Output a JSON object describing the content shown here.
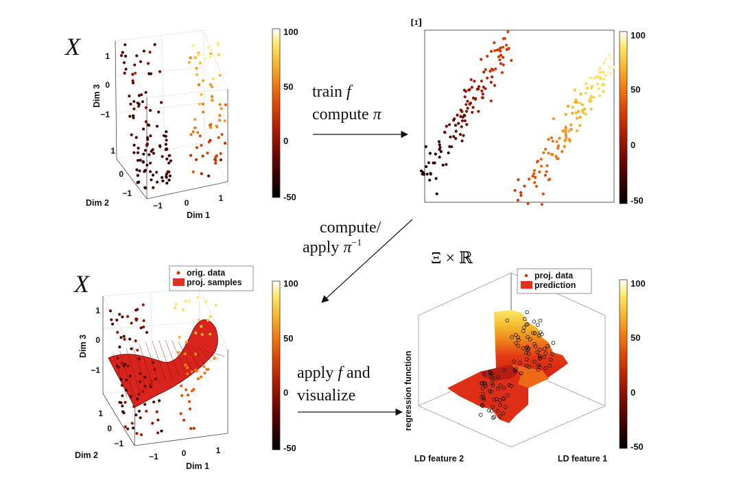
{
  "colors": {
    "colormap": [
      "#000000",
      "#3a0000",
      "#7a0a00",
      "#b52000",
      "#e04400",
      "#f27a10",
      "#f9b52a",
      "#fde865",
      "#ffffff"
    ],
    "surface": "#d8241c",
    "legend_orig": "#c83a0c",
    "legend_proj": "#e03020",
    "legend_pred": "#e2321c"
  },
  "panel_tl": {
    "title": "X",
    "xlabel": "Dim 1",
    "ylabel": "Dim 2",
    "zlabel": "Dim 3",
    "z_ticks": [
      "1",
      "0",
      "−1"
    ],
    "y_ticks": [
      "1",
      "0",
      "−1"
    ],
    "x_ticks": [
      "−1",
      "0",
      "1"
    ],
    "colorbar_ticks": [
      "100",
      "50",
      "0",
      "-50"
    ]
  },
  "panel_tr": {
    "title": "Ξ",
    "colorbar_ticks": [
      "100",
      "50",
      "0",
      "-50"
    ]
  },
  "panel_bl": {
    "title": "X",
    "xlabel": "Dim 1",
    "ylabel": "Dim 2",
    "zlabel": "Dim 3",
    "z_ticks": [
      "1",
      "0",
      "−1"
    ],
    "y_ticks": [
      "1",
      "0",
      "−1"
    ],
    "x_ticks": [
      "−1",
      "0",
      "1"
    ],
    "legend": [
      "orig. data",
      "proj. samples"
    ],
    "colorbar_ticks": [
      "100",
      "50",
      "0",
      "-50"
    ]
  },
  "panel_br": {
    "title_xi": "Ξ",
    "title_times": "×",
    "title_r": "ℝ",
    "zlabel": "regression function",
    "xlabel": "LD feature 2",
    "ylabel": "LD feature 1",
    "legend": [
      "proj. data",
      "prediction"
    ],
    "colorbar_ticks": [
      "100",
      "50",
      "0",
      "-50"
    ]
  },
  "arrows": {
    "top_line1": "train",
    "top_line1_var": "f",
    "top_line2": "compute",
    "top_line2_var": "π",
    "mid_line1": "compute/",
    "mid_line2": "apply",
    "mid_line2_var": "π",
    "mid_line2_sup": "−1",
    "bottom_line1": "apply",
    "bottom_line1_var": "f",
    "bottom_line1_tail": "and",
    "bottom_line2": "visualize"
  }
}
